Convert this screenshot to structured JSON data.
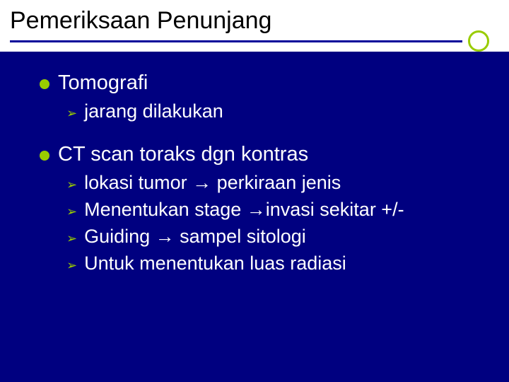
{
  "slide": {
    "title": "Pemeriksaan Penunjang",
    "colors": {
      "background": "#000080",
      "title_bg": "#ffffff",
      "title_text": "#000000",
      "body_text": "#ffffff",
      "accent": "#99cc00",
      "underline": "#000099"
    },
    "typography": {
      "title_fontsize": 34,
      "lvl1_fontsize": 29,
      "lvl2_fontsize": 27,
      "font_family": "Arial"
    },
    "items": [
      {
        "label": "Tomografi",
        "sub": [
          {
            "text": "jarang dilakukan"
          }
        ]
      },
      {
        "label": "CT scan toraks dgn kontras",
        "sub": [
          {
            "text": "lokasi tumor → perkiraan jenis"
          },
          {
            "text": "Menentukan stage →invasi sekitar  +/-"
          },
          {
            "text": "Guiding → sampel sitologi"
          },
          {
            "text": "Untuk menentukan luas radiasi"
          }
        ]
      }
    ]
  }
}
